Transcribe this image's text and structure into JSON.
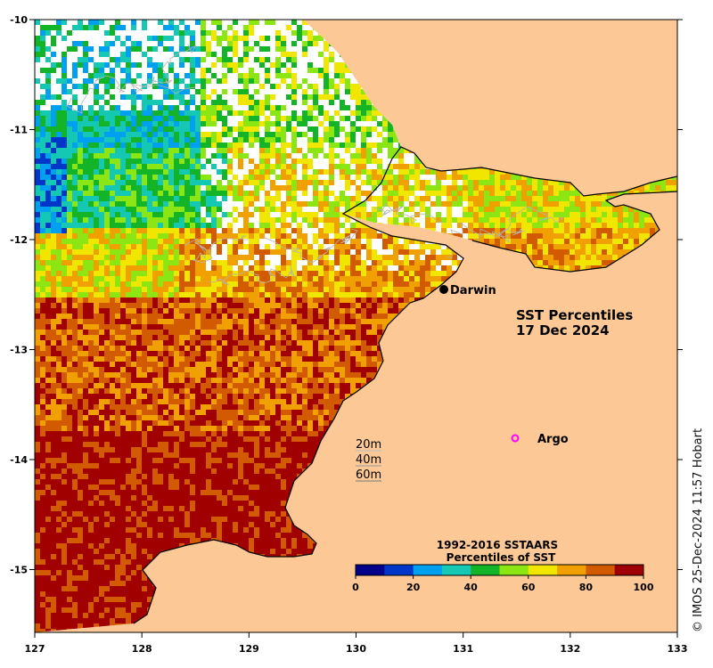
{
  "map": {
    "title_line1": "SST Percentiles",
    "title_line2": "17 Dec 2024",
    "lon_ticks": [
      "127",
      "128",
      "129",
      "130",
      "131",
      "132",
      "133"
    ],
    "lat_ticks": [
      "-10",
      "-11",
      "-12",
      "-13",
      "-14",
      "-15"
    ],
    "places": [
      {
        "name": "Darwin",
        "lon": 130.83,
        "lat": -12.46,
        "marker": "filled-dot"
      },
      {
        "name": "Argo",
        "lon": 131.5,
        "lat": -13.8,
        "marker": "magenta-ring"
      }
    ],
    "depth_labels": [
      "20m",
      "40m",
      "60m"
    ],
    "credit": "© IMOS 25-Dec-2024 11:57 Hobart"
  },
  "legend": {
    "title_line1": "1992-2016 SSTAARS",
    "title_line2": "Percentiles of SST",
    "ticks": [
      "0",
      "20",
      "40",
      "60",
      "80",
      "100"
    ],
    "colors": [
      "#00008b",
      "#0037c8",
      "#00a0f0",
      "#14c8b4",
      "#14b428",
      "#8ce614",
      "#f0e600",
      "#f0a000",
      "#d25a00",
      "#a00000"
    ]
  },
  "colors": {
    "land": "#fcc896",
    "coast": "#000000",
    "isobath": "#a0a0a0"
  }
}
